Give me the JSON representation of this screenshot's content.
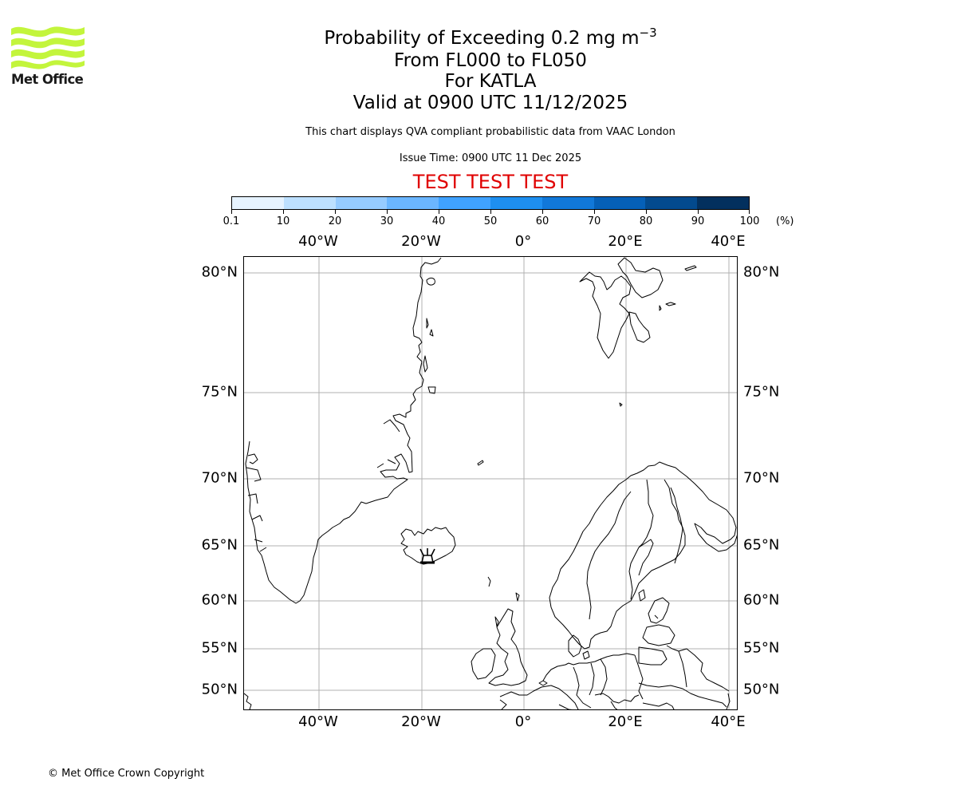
{
  "logo": {
    "text": "Met Office",
    "wave_color": "#c3f53c",
    "text_color": "#1a1a1a"
  },
  "header": {
    "title_main": "Probability of Exceeding 0.2 mg m",
    "title_exponent": "−3",
    "flight_levels": "From FL000 to FL050",
    "volcano": "For KATLA",
    "valid_time": "Valid at 0900 UTC 11/12/2025",
    "description": "This chart displays QVA compliant probabilistic data from VAAC London",
    "issue_time": "Issue Time: 0900 UTC 11 Dec 2025",
    "test_banner": "TEST TEST TEST",
    "test_banner_color": "#e00000"
  },
  "colorbar": {
    "unit_label": "(%)",
    "tick_labels": [
      "0.1",
      "10",
      "20",
      "30",
      "40",
      "50",
      "60",
      "70",
      "80",
      "90",
      "100"
    ],
    "colors": [
      "#e6f3ff",
      "#bde0ff",
      "#96cbff",
      "#6bb6ff",
      "#40a2ff",
      "#1e8ff0",
      "#1178d9",
      "#0560b8",
      "#034a8e",
      "#03305e"
    ]
  },
  "map": {
    "lon_labels": [
      "40°W",
      "20°W",
      "0°",
      "20°E",
      "40°E"
    ],
    "lat_labels": [
      "80°N",
      "75°N",
      "70°N",
      "65°N",
      "60°N",
      "55°N",
      "50°N"
    ],
    "volcano_marker": "Katla volcano symbol (southern Iceland)",
    "gridline_color": "#b0b0b0"
  },
  "chart_data": {
    "type": "heatmap",
    "title": "Probability of Exceeding 0.2 mg m−3",
    "subtitle": [
      "From FL000 to FL050",
      "For KATLA",
      "Valid at 0900 UTC 11/12/2025"
    ],
    "colorbar": {
      "bounds": [
        0.1,
        10,
        20,
        30,
        40,
        50,
        60,
        70,
        80,
        90,
        100
      ],
      "unit": "%"
    },
    "x_axis": {
      "ticks": [
        "40°W",
        "20°W",
        "0°",
        "20°E",
        "40°E"
      ],
      "range_deg": [
        -54,
        42
      ]
    },
    "y_axis": {
      "ticks": [
        "80°N",
        "75°N",
        "70°N",
        "65°N",
        "60°N",
        "55°N",
        "50°N"
      ],
      "range_deg": [
        48,
        81
      ]
    },
    "grid": true,
    "shaded_values": [],
    "annotations": [
      "Volcano marker at Katla, Iceland"
    ]
  },
  "footer": {
    "copyright": "© Met Office Crown Copyright"
  }
}
